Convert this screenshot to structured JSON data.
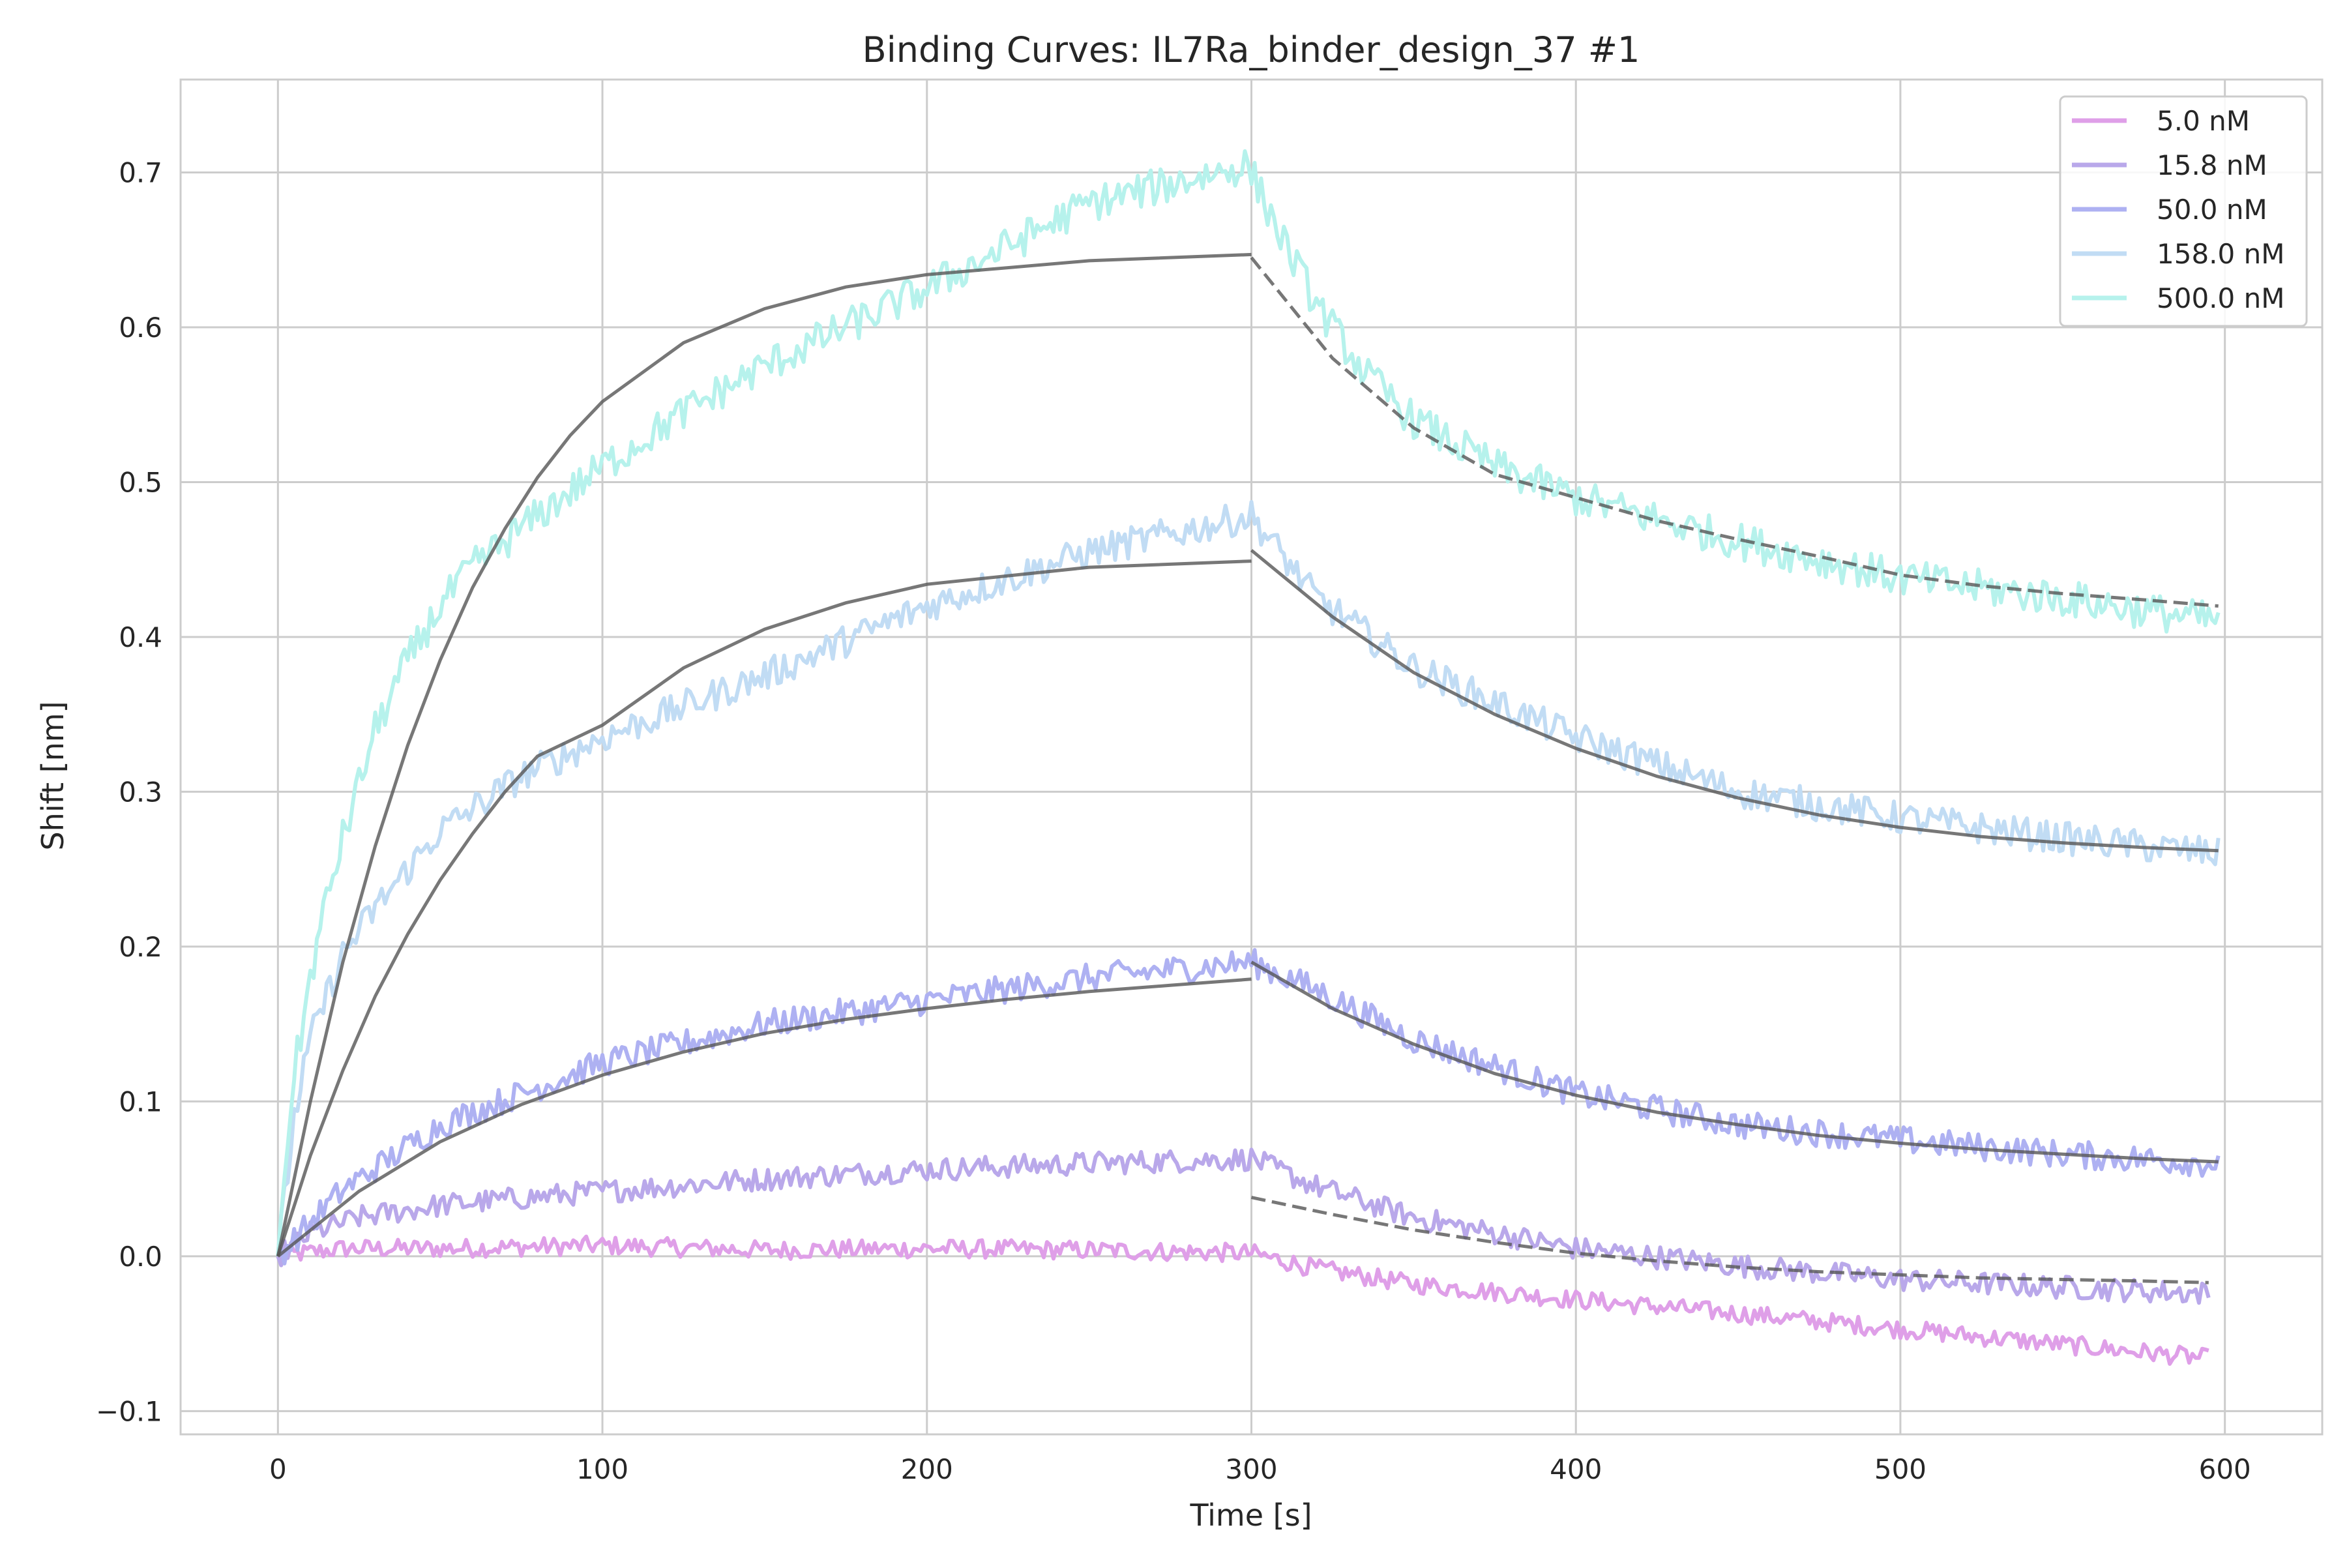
{
  "chart_data": {
    "type": "line",
    "title": "Binding Curves: IL7Ra_binder_design_37 #1",
    "xlabel": "Time [s]",
    "ylabel": "Shift [nm]",
    "xlim": [
      -30,
      630
    ],
    "ylim": [
      -0.115,
      0.76
    ],
    "xticks": [
      0,
      100,
      200,
      300,
      400,
      500,
      600
    ],
    "yticks": [
      -0.1,
      0.0,
      0.1,
      0.2,
      0.3,
      0.4,
      0.5,
      0.6,
      0.7
    ],
    "xtick_labels": [
      "0",
      "100",
      "200",
      "300",
      "400",
      "500",
      "600"
    ],
    "ytick_labels": [
      "−0.1",
      "0.0",
      "0.1",
      "0.2",
      "0.3",
      "0.4",
      "0.5",
      "0.6",
      "0.7"
    ],
    "grid": true,
    "legend_position": "top-right",
    "association_end": 300,
    "series": [
      {
        "name": "5.0 nM",
        "color": "#df9fe8",
        "x": [
          0,
          20,
          50,
          100,
          150,
          200,
          250,
          300,
          320,
          350,
          400,
          450,
          500,
          550,
          595
        ],
        "y": [
          0.0,
          0.005,
          0.005,
          0.007,
          0.004,
          0.005,
          0.004,
          0.002,
          -0.008,
          -0.018,
          -0.028,
          -0.037,
          -0.047,
          -0.057,
          -0.066
        ]
      },
      {
        "name": "15.8 nM",
        "color": "#b9a8ea",
        "x": [
          0,
          10,
          25,
          50,
          100,
          150,
          200,
          250,
          300,
          320,
          350,
          400,
          450,
          500,
          550,
          595
        ],
        "y": [
          0.0,
          0.015,
          0.025,
          0.033,
          0.042,
          0.05,
          0.056,
          0.06,
          0.063,
          0.045,
          0.025,
          0.005,
          -0.006,
          -0.015,
          -0.02,
          -0.024
        ]
      },
      {
        "name": "50.0 nM",
        "color": "#aeb1f2",
        "x": [
          0,
          20,
          50,
          100,
          150,
          200,
          250,
          300,
          320,
          350,
          400,
          450,
          500,
          550,
          598
        ],
        "y": [
          0.0,
          0.043,
          0.085,
          0.125,
          0.15,
          0.165,
          0.18,
          0.19,
          0.172,
          0.14,
          0.105,
          0.085,
          0.075,
          0.066,
          0.06
        ]
      },
      {
        "name": "158.0 nM",
        "color": "#c1dcf4",
        "x": [
          0,
          5,
          10,
          20,
          30,
          50,
          75,
          100,
          150,
          200,
          250,
          300,
          320,
          350,
          400,
          450,
          500,
          550,
          598
        ],
        "y": [
          0.0,
          0.09,
          0.14,
          0.195,
          0.225,
          0.275,
          0.31,
          0.335,
          0.375,
          0.42,
          0.455,
          0.478,
          0.425,
          0.38,
          0.335,
          0.3,
          0.283,
          0.27,
          0.26
        ]
      },
      {
        "name": "500.0 nM",
        "color": "#b6f2ec",
        "x": [
          0,
          3,
          6,
          10,
          15,
          20,
          30,
          40,
          50,
          60,
          75,
          100,
          125,
          150,
          200,
          250,
          270,
          299,
          301,
          310,
          320,
          335,
          350,
          375,
          400,
          450,
          500,
          550,
          598
        ],
        "y": [
          0.0,
          0.08,
          0.13,
          0.18,
          0.23,
          0.27,
          0.34,
          0.385,
          0.42,
          0.445,
          0.47,
          0.51,
          0.545,
          0.575,
          0.625,
          0.68,
          0.69,
          0.705,
          0.695,
          0.655,
          0.615,
          0.57,
          0.54,
          0.51,
          0.49,
          0.462,
          0.438,
          0.425,
          0.41
        ]
      }
    ],
    "fits": [
      {
        "conc": "15.8 nM",
        "style": "dashed",
        "x": [
          300,
          325,
          350,
          375,
          400,
          425,
          450,
          475,
          500,
          525,
          550,
          575,
          595
        ],
        "y": [
          0.038,
          0.027,
          0.017,
          0.009,
          0.002,
          -0.003,
          -0.007,
          -0.01,
          -0.012,
          -0.014,
          -0.015,
          -0.016,
          -0.017
        ]
      },
      {
        "conc": "50.0 nM",
        "style": "solid",
        "x": [
          0,
          25,
          50,
          75,
          100,
          125,
          150,
          175,
          200,
          225,
          250,
          275,
          300
        ],
        "y": [
          0.0,
          0.042,
          0.074,
          0.098,
          0.117,
          0.132,
          0.144,
          0.153,
          0.16,
          0.166,
          0.171,
          0.175,
          0.179
        ]
      },
      {
        "conc": "50.0 nM",
        "style": "solid",
        "x": [
          300,
          325,
          350,
          375,
          400,
          425,
          450,
          475,
          500,
          525,
          550,
          575,
          598
        ],
        "y": [
          0.19,
          0.16,
          0.137,
          0.118,
          0.104,
          0.093,
          0.085,
          0.078,
          0.073,
          0.069,
          0.066,
          0.063,
          0.061
        ]
      },
      {
        "conc": "158.0 nM",
        "style": "solid",
        "x": [
          0,
          10,
          20,
          30,
          40,
          50,
          60,
          70,
          80,
          100,
          125,
          150,
          175,
          200,
          250,
          300
        ],
        "y": [
          0.0,
          0.065,
          0.12,
          0.168,
          0.208,
          0.243,
          0.273,
          0.3,
          0.323,
          0.343,
          0.38,
          0.405,
          0.422,
          0.434,
          0.445,
          0.449
        ]
      },
      {
        "conc": "158.0 nM",
        "style": "solid",
        "x": [
          300,
          325,
          350,
          375,
          400,
          425,
          450,
          475,
          500,
          525,
          550,
          575,
          598
        ],
        "y": [
          0.456,
          0.413,
          0.377,
          0.35,
          0.328,
          0.31,
          0.296,
          0.285,
          0.277,
          0.271,
          0.267,
          0.264,
          0.262
        ]
      },
      {
        "conc": "500.0 nM",
        "style": "solid",
        "x": [
          0,
          10,
          20,
          30,
          40,
          50,
          60,
          70,
          80,
          90,
          100,
          125,
          150,
          175,
          200,
          250,
          300
        ],
        "y": [
          0.0,
          0.1,
          0.19,
          0.265,
          0.33,
          0.385,
          0.432,
          0.47,
          0.503,
          0.53,
          0.552,
          0.59,
          0.612,
          0.626,
          0.634,
          0.643,
          0.647
        ]
      },
      {
        "conc": "500.0 nM",
        "style": "dashed",
        "x": [
          300,
          325,
          350,
          375,
          400,
          425,
          450,
          475,
          500,
          525,
          550,
          575,
          598
        ],
        "y": [
          0.645,
          0.58,
          0.535,
          0.505,
          0.49,
          0.475,
          0.463,
          0.452,
          0.44,
          0.433,
          0.428,
          0.424,
          0.42
        ]
      }
    ]
  }
}
